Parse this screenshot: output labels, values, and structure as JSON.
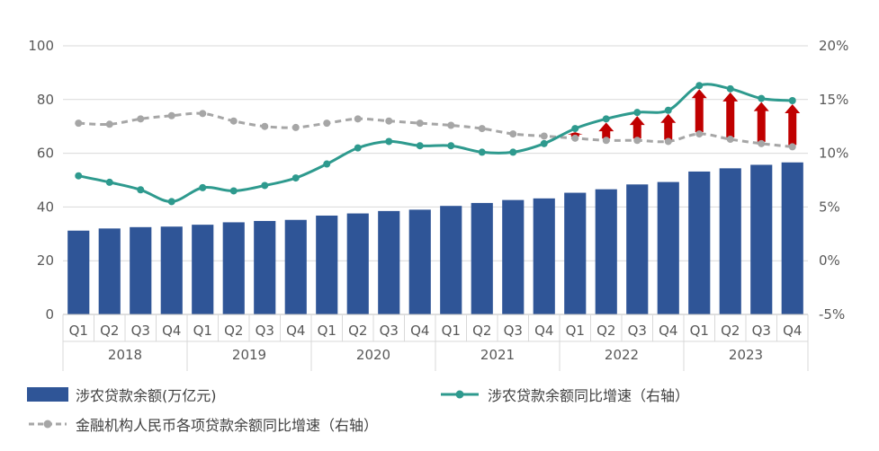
{
  "chart_data": {
    "type": "bar",
    "title": "",
    "xlabel": "",
    "ylabel": "",
    "quarters": [
      "Q1",
      "Q2",
      "Q3",
      "Q4",
      "Q1",
      "Q2",
      "Q3",
      "Q4",
      "Q1",
      "Q2",
      "Q3",
      "Q4",
      "Q1",
      "Q2",
      "Q3",
      "Q4",
      "Q1",
      "Q2",
      "Q3",
      "Q4",
      "Q1",
      "Q2",
      "Q3",
      "Q4"
    ],
    "years": [
      "2018",
      "2019",
      "2020",
      "2021",
      "2022",
      "2023"
    ],
    "left_ylim": [
      0,
      100
    ],
    "left_ticks": [
      "0",
      "20",
      "40",
      "60",
      "80",
      "100"
    ],
    "right_ylim": [
      -5,
      20
    ],
    "right_ticks": [
      "-5%",
      "0%",
      "5%",
      "10%",
      "15%",
      "20%"
    ],
    "grid": true,
    "legend_position": "bottom",
    "series": [
      {
        "name": "涉农贷款余额(万亿元)",
        "type": "bar",
        "axis": "left",
        "color": "#2F5597",
        "values": [
          31.2,
          32.0,
          32.5,
          32.7,
          33.4,
          34.3,
          34.8,
          35.2,
          36.8,
          37.6,
          38.5,
          39.0,
          40.4,
          41.5,
          42.6,
          43.2,
          45.3,
          46.6,
          48.4,
          49.3,
          53.2,
          54.4,
          55.7,
          56.6
        ]
      },
      {
        "name": "涉农贷款余额同比增速（右轴）",
        "type": "line",
        "axis": "right",
        "color": "#2E9A8E",
        "values": [
          7.9,
          7.3,
          6.6,
          5.5,
          6.8,
          6.5,
          7.0,
          7.7,
          9.0,
          10.5,
          11.1,
          10.7,
          10.7,
          10.1,
          10.1,
          10.9,
          12.3,
          13.2,
          13.8,
          14.0,
          16.3,
          16.0,
          15.1,
          14.9
        ]
      },
      {
        "name": "金融机构人民币各项贷款余额同比增速（右轴）",
        "type": "line",
        "axis": "right",
        "color": "#A6A6A6",
        "dashed": true,
        "values": [
          12.8,
          12.7,
          13.2,
          13.5,
          13.7,
          13.0,
          12.5,
          12.4,
          12.8,
          13.2,
          13.0,
          12.8,
          12.6,
          12.3,
          11.8,
          11.6,
          11.4,
          11.2,
          11.2,
          11.1,
          11.8,
          11.3,
          10.9,
          10.6
        ]
      }
    ],
    "arrows": {
      "color": "#C00000",
      "description_hidden": true,
      "from_series": 2,
      "to_series": 1,
      "quarter_indices": [
        16,
        17,
        18,
        19,
        20,
        21,
        22,
        23
      ]
    }
  }
}
